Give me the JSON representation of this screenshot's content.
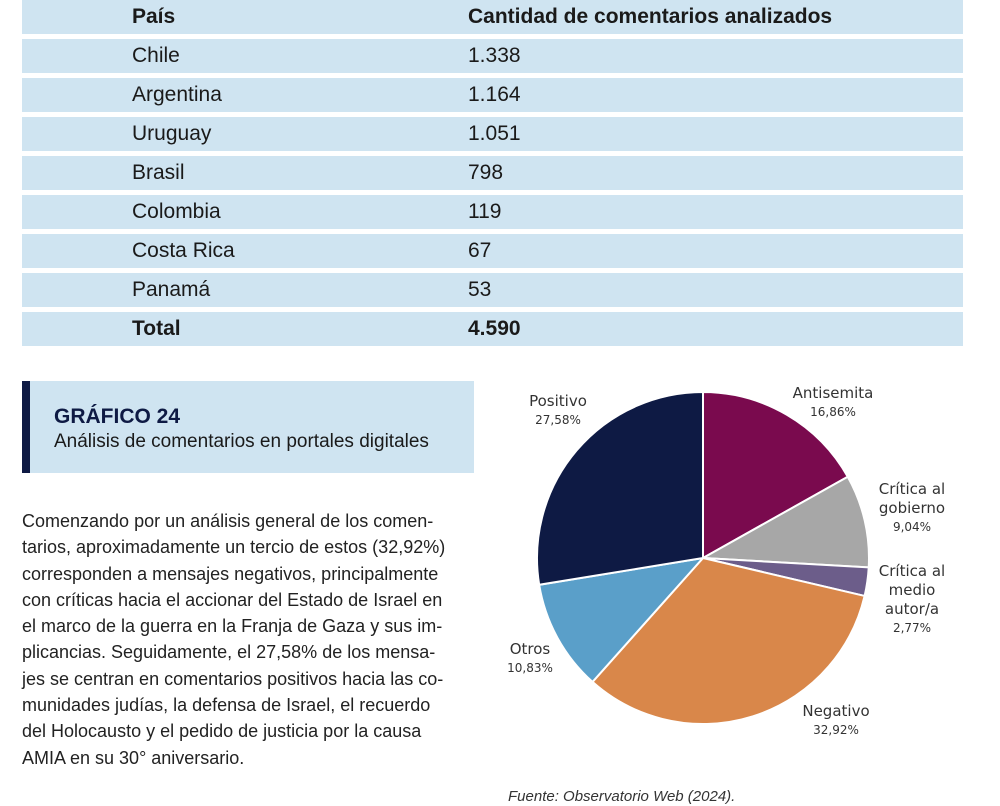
{
  "table": {
    "headers": [
      "País",
      "Cantidad de comentarios analizados"
    ],
    "rows": [
      [
        "Chile",
        "1.338"
      ],
      [
        "Argentina",
        "1.164"
      ],
      [
        "Uruguay",
        "1.051"
      ],
      [
        "Brasil",
        "798"
      ],
      [
        "Colombia",
        "119"
      ],
      [
        "Costa Rica",
        "67"
      ],
      [
        "Panamá",
        "53"
      ]
    ],
    "total": [
      "Total",
      "4.590"
    ]
  },
  "figure": {
    "number": "GRÁFICO 24",
    "title": "Análisis de comentarios en portales digitales"
  },
  "body_lines": [
    "Comenzando por un análisis general de los comen-",
    "tarios, aproximadamente un tercio de estos (32,92%)",
    "corresponden a mensajes negativos, principalmente",
    "con críticas hacia el accionar del Estado de Israel en",
    "el marco de la guerra en la Franja de Gaza y sus im-",
    "plicancias. Seguidamente, el 27,58% de los mensa-",
    "jes se centran en comentarios positivos hacia las co-",
    "munidades judías, la defensa de Israel, el recuerdo",
    "del Holocausto y el pedido de justicia por la causa",
    "AMIA en su 30° aniversario."
  ],
  "chart_data": {
    "type": "pie",
    "slices": [
      {
        "label": "Antisemita",
        "value": 16.86,
        "value_label": "16,86%",
        "color": "#7a0a4e"
      },
      {
        "label": "Crítica al gobierno",
        "value": 9.04,
        "value_label": "9,04%",
        "color": "#a7a7a7"
      },
      {
        "label": "Crítica al medio autor/a",
        "value": 2.77,
        "value_label": "2,77%",
        "color": "#6c5d8a"
      },
      {
        "label": "Negativo",
        "value": 32.92,
        "value_label": "32,92%",
        "color": "#d9874a"
      },
      {
        "label": "Otros",
        "value": 10.83,
        "value_label": "10,83%",
        "color": "#5a9fc9"
      },
      {
        "label": "Positivo",
        "value": 27.58,
        "value_label": "27,58%",
        "color": "#0e1a44"
      }
    ],
    "label_lines": [
      [
        "Antisemita"
      ],
      [
        "Crítica al",
        "gobierno"
      ],
      [
        "Crítica al",
        "medio",
        "autor/a"
      ],
      [
        "Negativo"
      ],
      [
        "Otros"
      ],
      [
        "Positivo"
      ]
    ]
  },
  "source": "Fuente: Observatorio Web (2024)."
}
